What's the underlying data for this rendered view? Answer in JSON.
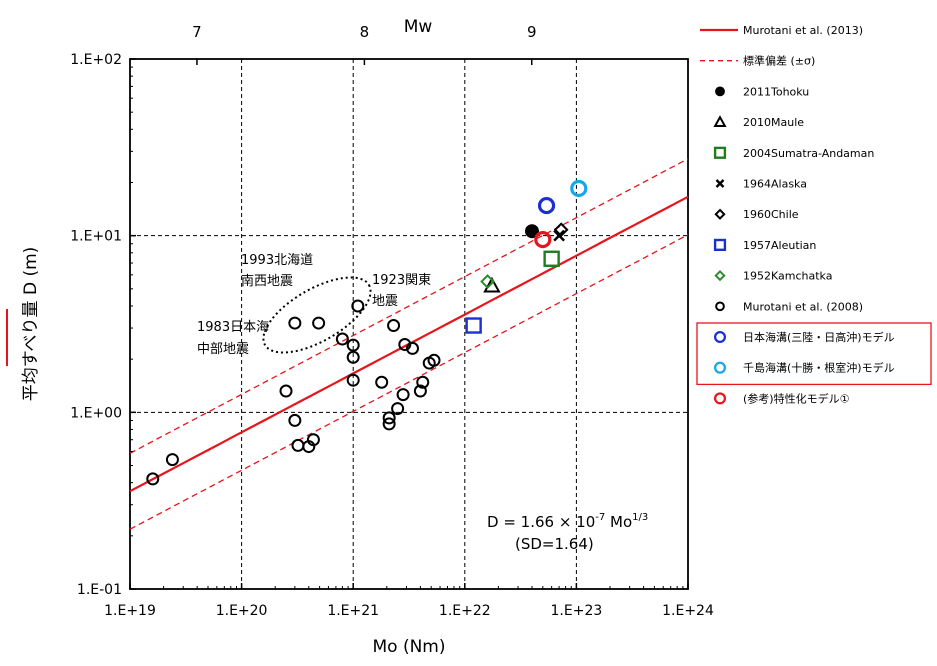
{
  "chart_data": {
    "type": "scatter",
    "x_scale": "log",
    "y_scale": "log",
    "xlabel": "Mo (Nm)",
    "ylabel": "平均すべり量 D (m)",
    "top_axis_label": "Mw",
    "xlim": [
      1e+19,
      1e+24
    ],
    "ylim": [
      0.1,
      100
    ],
    "x_tick_labels": [
      "1.E+19",
      "1.E+20",
      "1.E+21",
      "1.E+22",
      "1.E+23",
      "1.E+24"
    ],
    "y_tick_labels": [
      "1.E-01",
      "1.E+00",
      "1.E+01",
      "1.E+02"
    ],
    "top_ticks": [
      {
        "label": "7",
        "mo": 3.98e+19
      },
      {
        "label": "8",
        "mo": 1.26e+21
      },
      {
        "label": "9",
        "mo": 3.98e+22
      }
    ],
    "grid": true,
    "grid_style": "dashed",
    "legend_position": "right",
    "formula": {
      "main": "D = 1.66 × 10",
      "exp1": "-7",
      "mid": " Mo",
      "exp2": "1/3",
      "sd": "(SD=1.64)"
    },
    "annotations": [
      {
        "lines": [
          "1993北海道",
          "南西地震"
        ]
      },
      {
        "lines": [
          "1923関東",
          "地震"
        ]
      },
      {
        "lines": [
          "1983日本海",
          "中部地震"
        ]
      }
    ],
    "lines": [
      {
        "name": "Murotani et al. (2013)",
        "style": "solid",
        "color": "#e8141b",
        "coefficient": 1.66e-07,
        "exponent": 0.333333
      },
      {
        "name": "標準偏差 (±σ)",
        "style": "dashed",
        "color": "#e8141b",
        "factor": 1.64
      }
    ],
    "series": [
      {
        "name": "2011Tohoku",
        "marker": "filled-circle",
        "color": "#000000",
        "points": [
          [
            4e+22,
            10.6
          ]
        ]
      },
      {
        "name": "2010Maule",
        "marker": "triangle",
        "color": "#000000",
        "points": [
          [
            1.75e+22,
            5.2
          ]
        ]
      },
      {
        "name": "2004Sumatra-Andaman",
        "marker": "square",
        "color": "#1e7d1e",
        "points": [
          [
            6e+22,
            7.4
          ]
        ]
      },
      {
        "name": "1964Alaska",
        "marker": "x",
        "color": "#000000",
        "points": [
          [
            7e+22,
            10.0
          ]
        ]
      },
      {
        "name": "1960Chile",
        "marker": "diamond",
        "color": "#000000",
        "points": [
          [
            7.3e+22,
            10.8
          ]
        ]
      },
      {
        "name": "1957Aleutian",
        "marker": "square",
        "color": "#1a2fd6",
        "points": [
          [
            1.2e+22,
            3.1
          ]
        ]
      },
      {
        "name": "1952Kamchatka",
        "marker": "diamond",
        "color": "#2e8b2e",
        "points": [
          [
            1.6e+22,
            5.5
          ]
        ]
      },
      {
        "name": "Murotani et al. (2008)",
        "marker": "open-circle",
        "color": "#000000",
        "points": [
          [
            1.6e+19,
            0.42
          ],
          [
            2.4e+19,
            0.54
          ],
          [
            2.5e+20,
            1.32
          ],
          [
            3e+20,
            0.9
          ],
          [
            3.2e+20,
            0.65
          ],
          [
            3e+20,
            3.2
          ],
          [
            4e+20,
            0.64
          ],
          [
            4.4e+20,
            0.7
          ],
          [
            4.9e+20,
            3.2
          ],
          [
            8e+20,
            2.6
          ],
          [
            1e+21,
            2.4
          ],
          [
            1e+21,
            2.05
          ],
          [
            1e+21,
            1.52
          ],
          [
            1.1e+21,
            4.0
          ],
          [
            1.8e+21,
            1.48
          ],
          [
            2.1e+21,
            0.93
          ],
          [
            2.1e+21,
            0.86
          ],
          [
            2.3e+21,
            3.1
          ],
          [
            2.5e+21,
            1.05
          ],
          [
            2.8e+21,
            1.26
          ],
          [
            2.9e+21,
            2.42
          ],
          [
            3.4e+21,
            2.3
          ],
          [
            4e+21,
            1.32
          ],
          [
            4.2e+21,
            1.48
          ],
          [
            4.8e+21,
            1.9
          ],
          [
            5.3e+21,
            1.97
          ]
        ]
      },
      {
        "name": "日本海溝(三陸・日高沖)モデル",
        "marker": "open-circle-bold",
        "color": "#1a2fd6",
        "points": [
          [
            5.4e+22,
            14.8
          ]
        ]
      },
      {
        "name": "千島海溝(十勝・根室沖)モデル",
        "marker": "open-circle-bold",
        "color": "#17a6e8",
        "points": [
          [
            1.05e+23,
            18.5
          ]
        ]
      },
      {
        "name": "(参考)特性化モデル①",
        "marker": "open-circle-bold",
        "color": "#e8141b",
        "points": [
          [
            5e+22,
            9.5
          ]
        ]
      }
    ],
    "legend_entries": [
      {
        "label": "Murotani et al. (2013)",
        "symbol": "line-solid",
        "color": "#e8141b"
      },
      {
        "label": "標準偏差 (±σ)",
        "symbol": "line-dashed",
        "color": "#e8141b"
      },
      {
        "label": "2011Tohoku",
        "symbol": "filled-circle",
        "color": "#000000"
      },
      {
        "label": "2010Maule",
        "symbol": "triangle",
        "color": "#000000"
      },
      {
        "label": "2004Sumatra-Andaman",
        "symbol": "square",
        "color": "#1e7d1e"
      },
      {
        "label": "1964Alaska",
        "symbol": "x",
        "color": "#000000"
      },
      {
        "label": "1960Chile",
        "symbol": "diamond",
        "color": "#000000"
      },
      {
        "label": "1957Aleutian",
        "symbol": "square",
        "color": "#1a2fd6"
      },
      {
        "label": "1952Kamchatka",
        "symbol": "diamond",
        "color": "#2e8b2e"
      },
      {
        "label": "Murotani et al. (2008)",
        "symbol": "open-circle",
        "color": "#000000"
      },
      {
        "label": "日本海溝(三陸・日高沖)モデル",
        "symbol": "open-circle-bold",
        "color": "#1a2fd6",
        "boxed": true
      },
      {
        "label": "千島海溝(十勝・根室沖)モデル",
        "symbol": "open-circle-bold",
        "color": "#17a6e8",
        "boxed": true
      },
      {
        "label": "(参考)特性化モデル①",
        "symbol": "open-circle-bold",
        "color": "#e8141b"
      }
    ],
    "accent_color": "#e8141b"
  }
}
